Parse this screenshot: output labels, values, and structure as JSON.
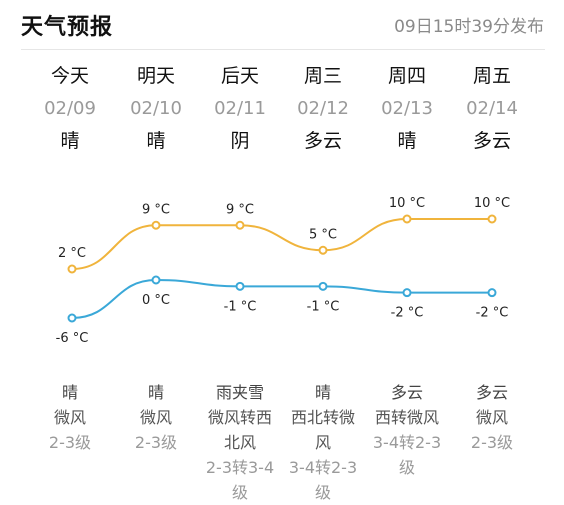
{
  "header": {
    "title": "天气预报",
    "update_time": "09日15时39分发布"
  },
  "days": [
    {
      "name": "今天",
      "date": "02/09",
      "cond": "晴",
      "bottom_cond": "晴",
      "wind_lines": [
        "微风"
      ],
      "level_lines": [
        "2-3级"
      ]
    },
    {
      "name": "明天",
      "date": "02/10",
      "cond": "晴",
      "bottom_cond": "晴",
      "wind_lines": [
        "微风"
      ],
      "level_lines": [
        "2-3级"
      ]
    },
    {
      "name": "后天",
      "date": "02/11",
      "cond": "阴",
      "bottom_cond": "雨夹雪",
      "wind_lines": [
        "微风转西",
        "北风"
      ],
      "level_lines": [
        "2-3转3-4",
        "级"
      ]
    },
    {
      "name": "周三",
      "date": "02/12",
      "cond": "多云",
      "bottom_cond": "晴",
      "wind_lines": [
        "西北转微",
        "风"
      ],
      "level_lines": [
        "3-4转2-3",
        "级"
      ]
    },
    {
      "name": "周四",
      "date": "02/13",
      "cond": "晴",
      "bottom_cond": "多云",
      "wind_lines": [
        "西转微风"
      ],
      "level_lines": [
        "3-4转2-3",
        "级"
      ]
    },
    {
      "name": "周五",
      "date": "02/14",
      "cond": "多云",
      "bottom_cond": "多云",
      "wind_lines": [
        "微风"
      ],
      "level_lines": [
        "2-3级"
      ]
    }
  ],
  "chart_data": {
    "type": "line",
    "categories": [
      "02/09",
      "02/10",
      "02/11",
      "02/12",
      "02/13",
      "02/14"
    ],
    "series": [
      {
        "values": [
          2,
          9,
          9,
          5,
          10,
          10
        ],
        "labels": [
          "2 °C",
          "9 °C",
          "9 °C",
          "5 °C",
          "10 °C",
          "10 °C"
        ],
        "color": "#F0B43C"
      },
      {
        "values": [
          -6,
          0,
          -1,
          -1,
          -2,
          -2
        ],
        "labels": [
          "-6 °C",
          "0 °C",
          "-1 °C",
          "-1 °C",
          "-2 °C",
          "-2 °C"
        ],
        "color": "#3AA8D8"
      }
    ],
    "unit": "°C"
  }
}
